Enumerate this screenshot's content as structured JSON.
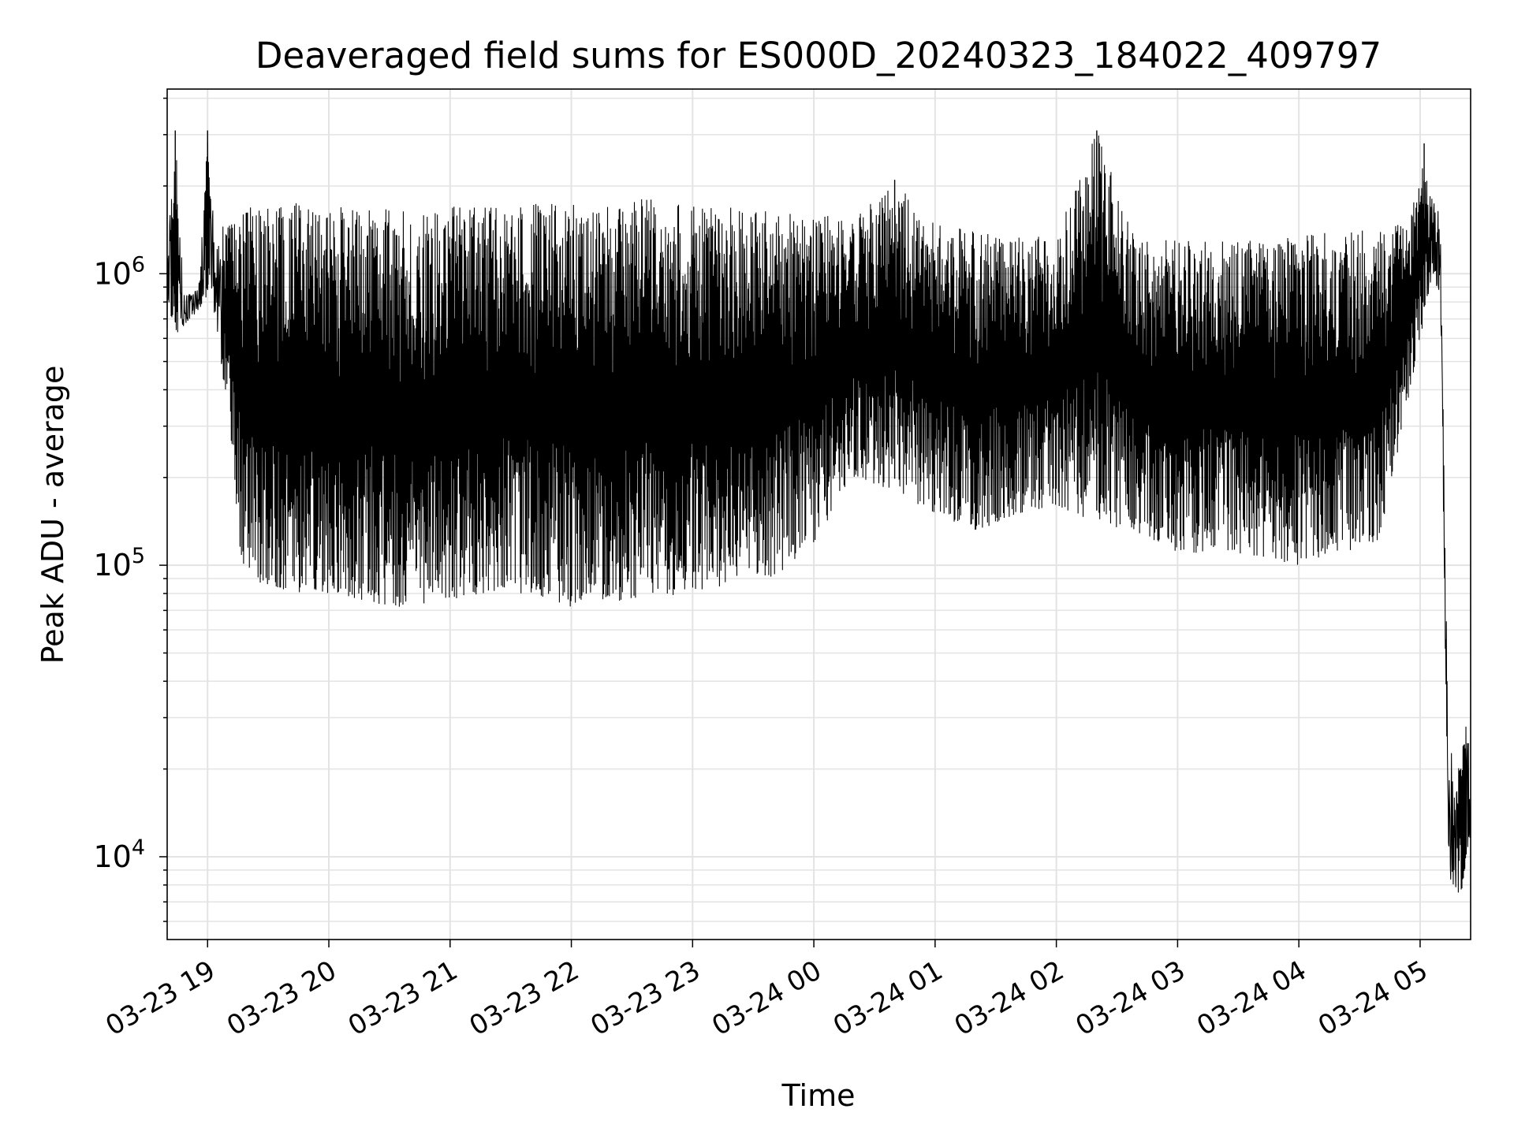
{
  "chart_data": {
    "type": "line",
    "title": "Deaveraged field sums for ES000D_20240323_184022_409797",
    "xlabel": "Time",
    "ylabel": "Peak ADU - average",
    "x_scale": "time",
    "y_scale": "log",
    "xlim": [
      "2024-03-23 18:40",
      "2024-03-24 05:25"
    ],
    "ylim": [
      5200,
      4300000
    ],
    "x_ticks": [
      {
        "time": "2024-03-23 19:00",
        "label": "03-23 19"
      },
      {
        "time": "2024-03-23 20:00",
        "label": "03-23 20"
      },
      {
        "time": "2024-03-23 21:00",
        "label": "03-23 21"
      },
      {
        "time": "2024-03-23 22:00",
        "label": "03-23 22"
      },
      {
        "time": "2024-03-23 23:00",
        "label": "03-23 23"
      },
      {
        "time": "2024-03-24 00:00",
        "label": "03-24 00"
      },
      {
        "time": "2024-03-24 01:00",
        "label": "03-24 01"
      },
      {
        "time": "2024-03-24 02:00",
        "label": "03-24 02"
      },
      {
        "time": "2024-03-24 03:00",
        "label": "03-24 03"
      },
      {
        "time": "2024-03-24 04:00",
        "label": "03-24 04"
      },
      {
        "time": "2024-03-24 05:00",
        "label": "03-24 05"
      }
    ],
    "y_ticks": [
      {
        "value": 10000,
        "base": "10",
        "exp": "4"
      },
      {
        "value": 100000,
        "base": "10",
        "exp": "5"
      },
      {
        "value": 1000000,
        "base": "10",
        "exp": "6"
      }
    ],
    "grid": true,
    "line_color": "#000000",
    "series": [
      {
        "x": [
          "2024-03-23 18:40",
          "2024-03-23 18:44",
          "2024-03-23 18:48",
          "2024-03-23 18:52",
          "2024-03-23 18:56",
          "2024-03-23 19:00",
          "2024-03-23 19:04",
          "2024-03-23 19:08",
          "2024-03-23 19:12",
          "2024-03-23 19:16",
          "2024-03-23 19:20",
          "2024-03-23 19:30",
          "2024-03-23 19:45",
          "2024-03-23 20:00",
          "2024-03-23 20:20",
          "2024-03-23 20:40",
          "2024-03-23 21:00",
          "2024-03-23 21:20",
          "2024-03-23 21:40",
          "2024-03-23 22:00",
          "2024-03-23 22:20",
          "2024-03-23 22:40",
          "2024-03-23 23:00",
          "2024-03-23 23:20",
          "2024-03-23 23:40",
          "2024-03-24 00:00",
          "2024-03-24 00:20",
          "2024-03-24 00:40",
          "2024-03-24 01:00",
          "2024-03-24 01:20",
          "2024-03-24 01:40",
          "2024-03-24 02:00",
          "2024-03-24 02:20",
          "2024-03-24 02:40",
          "2024-03-24 03:00",
          "2024-03-24 03:20",
          "2024-03-24 03:40",
          "2024-03-24 04:00",
          "2024-03-24 04:20",
          "2024-03-24 04:40",
          "2024-03-24 04:55",
          "2024-03-24 05:02",
          "2024-03-24 05:06",
          "2024-03-24 05:10",
          "2024-03-24 05:14",
          "2024-03-24 05:18",
          "2024-03-24 05:22",
          "2024-03-24 05:25"
        ],
        "low": [
          650000,
          620000,
          650000,
          700000,
          750000,
          800000,
          700000,
          420000,
          250000,
          110000,
          90000,
          85000,
          80000,
          80000,
          75000,
          70000,
          75000,
          80000,
          80000,
          72000,
          75000,
          78000,
          80000,
          85000,
          90000,
          120000,
          200000,
          180000,
          150000,
          130000,
          150000,
          160000,
          140000,
          130000,
          110000,
          110000,
          105000,
          100000,
          110000,
          120000,
          400000,
          700000,
          900000,
          800000,
          8500,
          7200,
          8000,
          12000
        ],
        "high": [
          1300000,
          3100000,
          900000,
          850000,
          950000,
          3100000,
          1200000,
          1500000,
          1500000,
          1650000,
          1700000,
          1700000,
          1750000,
          1700000,
          1700000,
          1650000,
          1700000,
          1700000,
          1750000,
          1750000,
          1800000,
          1800000,
          1700000,
          1700000,
          1650000,
          1600000,
          1550000,
          2100000,
          1500000,
          1400000,
          1350000,
          1350000,
          3100000,
          1350000,
          1300000,
          1300000,
          1300000,
          1350000,
          1400000,
          1450000,
          1500000,
          2800000,
          1800000,
          1600000,
          25000,
          20000,
          30000,
          25000
        ]
      }
    ]
  }
}
